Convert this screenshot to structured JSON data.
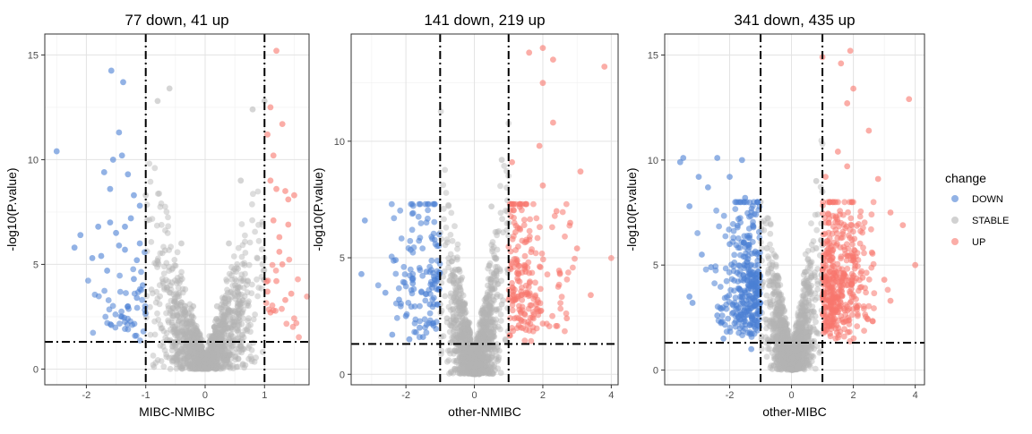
{
  "chart_data": [
    {
      "type": "scatter",
      "subtype": "volcano",
      "title": "77 down, 41 up",
      "xlabel": "MIBC-NMIBC",
      "ylabel": "-log10(P.value)",
      "xlim": [
        -2.7,
        1.75
      ],
      "ylim": [
        -0.75,
        16.0
      ],
      "xticks": [
        -2,
        -1,
        0,
        1
      ],
      "yticks": [
        0,
        5,
        10,
        15
      ],
      "fold_change_thresholds": [
        -1,
        1
      ],
      "pvalue_threshold": 1.301,
      "counts": {
        "DOWN": 77,
        "UP": 41
      },
      "points_DOWN": [
        [
          -2.5,
          10.4
        ],
        [
          -1.58,
          14.25
        ],
        [
          -1.38,
          13.7
        ],
        [
          -2.1,
          6.4
        ],
        [
          -1.8,
          6.8
        ],
        [
          -1.9,
          5.3
        ],
        [
          -1.7,
          9.4
        ],
        [
          -1.55,
          10.0
        ],
        [
          -1.6,
          8.6
        ],
        [
          -1.4,
          10.2
        ],
        [
          -1.5,
          6.5
        ],
        [
          -1.65,
          4.7
        ],
        [
          -1.45,
          5.9
        ],
        [
          -1.35,
          6.8
        ],
        [
          -1.25,
          7.2
        ],
        [
          -1.2,
          4.3
        ],
        [
          -1.3,
          3.0
        ],
        [
          -1.4,
          2.5
        ],
        [
          -1.15,
          5.2
        ],
        [
          -1.1,
          6.0
        ],
        [
          -1.05,
          4.0
        ],
        [
          -1.2,
          8.3
        ],
        [
          -1.3,
          9.3
        ],
        [
          -1.15,
          3.4
        ],
        [
          -1.35,
          5.7
        ],
        [
          -1.1,
          7.8
        ],
        [
          -2.2,
          5.8
        ],
        [
          -1.75,
          5.4
        ],
        [
          -1.6,
          7.0
        ],
        [
          -1.45,
          11.3
        ]
      ],
      "points_UP": [
        [
          1.2,
          15.2
        ],
        [
          1.1,
          12.5
        ],
        [
          1.05,
          11.2
        ],
        [
          1.15,
          10.2
        ],
        [
          1.2,
          8.6
        ],
        [
          1.35,
          8.5
        ],
        [
          1.4,
          8.1
        ],
        [
          1.25,
          6.3
        ],
        [
          1.3,
          5.0
        ],
        [
          1.45,
          3.6
        ],
        [
          1.35,
          3.3
        ],
        [
          1.1,
          9.0
        ],
        [
          1.15,
          7.1
        ],
        [
          1.2,
          4.2
        ],
        [
          1.05,
          3.7
        ],
        [
          1.3,
          11.7
        ],
        [
          1.25,
          5.6
        ],
        [
          1.4,
          6.9
        ],
        [
          1.1,
          2.7
        ],
        [
          1.5,
          8.3
        ]
      ],
      "stable_cloud": [
        [
          -1.0,
          8.3
        ],
        [
          -0.8,
          12.8
        ],
        [
          -0.6,
          13.4
        ],
        [
          -0.4,
          6.0
        ],
        [
          -0.2,
          3.0
        ],
        [
          0.0,
          0.2
        ],
        [
          0.2,
          3.0
        ],
        [
          0.4,
          6.0
        ],
        [
          0.6,
          9.0
        ],
        [
          0.8,
          12.4
        ],
        [
          1.0,
          12.8
        ]
      ]
    },
    {
      "type": "scatter",
      "subtype": "volcano",
      "title": "141 down, 219 up",
      "xlabel": "other-NMIBC",
      "ylabel": "-log10(P.value)",
      "xlim": [
        -3.6,
        4.2
      ],
      "ylim": [
        -0.45,
        14.6
      ],
      "xticks": [
        -2,
        0,
        2,
        4
      ],
      "yticks": [
        0,
        5,
        10
      ],
      "fold_change_thresholds": [
        -1,
        1
      ],
      "pvalue_threshold": 1.301,
      "counts": {
        "DOWN": 141,
        "UP": 219
      },
      "points_DOWN": [
        [
          -3.2,
          6.6
        ],
        [
          -3.3,
          4.3
        ],
        [
          -2.3,
          4.9
        ],
        [
          -2.6,
          3.5
        ],
        [
          -2.2,
          3.2
        ],
        [
          -2.0,
          2.5
        ],
        [
          -1.8,
          3.9
        ],
        [
          -1.6,
          2.0
        ],
        [
          -1.5,
          1.6
        ],
        [
          -1.3,
          3.0
        ],
        [
          -1.2,
          2.2
        ],
        [
          -1.1,
          4.0
        ],
        [
          -2.4,
          1.7
        ],
        [
          -1.9,
          1.5
        ],
        [
          -1.4,
          4.4
        ]
      ],
      "points_UP": [
        [
          2.0,
          14.0
        ],
        [
          3.8,
          13.2
        ],
        [
          1.6,
          13.8
        ],
        [
          2.3,
          13.5
        ],
        [
          2.0,
          12.5
        ],
        [
          2.3,
          10.8
        ],
        [
          1.9,
          9.8
        ],
        [
          2.4,
          7.0
        ],
        [
          2.8,
          6.5
        ],
        [
          3.0,
          5.4
        ],
        [
          2.5,
          4.3
        ],
        [
          3.4,
          3.4
        ],
        [
          1.2,
          6.1
        ],
        [
          1.5,
          4.4
        ],
        [
          1.8,
          3.0
        ],
        [
          1.1,
          9.1
        ],
        [
          2.0,
          8.1
        ],
        [
          2.7,
          2.4
        ],
        [
          1.3,
          2.1
        ],
        [
          3.1,
          8.7
        ]
      ],
      "stable_cloud": [
        [
          -1.0,
          3.0
        ],
        [
          -0.8,
          2.4
        ],
        [
          -0.4,
          1.5
        ],
        [
          0.0,
          0.1
        ],
        [
          0.4,
          1.5
        ],
        [
          0.8,
          3.0
        ],
        [
          1.0,
          6.5
        ],
        [
          0.8,
          9.2
        ],
        [
          0.5,
          7.2
        ]
      ]
    },
    {
      "type": "scatter",
      "subtype": "volcano",
      "title": "341 down, 435 up",
      "xlabel": "other-MIBC",
      "ylabel": "-log10(P.value)",
      "xlim": [
        -4.1,
        4.3
      ],
      "ylim": [
        -0.7,
        16.0
      ],
      "xticks": [
        -2,
        0,
        2,
        4
      ],
      "yticks": [
        0,
        5,
        10,
        15
      ],
      "fold_change_thresholds": [
        -1,
        1
      ],
      "pvalue_threshold": 1.301,
      "counts": {
        "DOWN": 341,
        "UP": 435
      },
      "points_DOWN": [
        [
          -3.6,
          9.9
        ],
        [
          -3.5,
          10.1
        ],
        [
          -3.0,
          9.2
        ],
        [
          -2.7,
          8.7
        ],
        [
          -2.4,
          10.1
        ],
        [
          -2.0,
          9.2
        ],
        [
          -1.6,
          10.0
        ],
        [
          -3.3,
          3.5
        ],
        [
          -3.2,
          3.2
        ],
        [
          -2.4,
          2.6
        ],
        [
          -2.2,
          1.5
        ],
        [
          -1.3,
          1.0
        ],
        [
          -3.3,
          7.8
        ],
        [
          -2.9,
          5.5
        ],
        [
          -2.6,
          4.9
        ],
        [
          -2.0,
          6.0
        ],
        [
          -1.5,
          8.2
        ]
      ],
      "points_UP": [
        [
          1.9,
          15.2
        ],
        [
          1.6,
          14.6
        ],
        [
          1.0,
          14.9
        ],
        [
          2.0,
          13.4
        ],
        [
          1.8,
          12.7
        ],
        [
          3.8,
          12.9
        ],
        [
          2.5,
          11.4
        ],
        [
          1.5,
          10.4
        ],
        [
          1.8,
          9.7
        ],
        [
          2.8,
          9.1
        ],
        [
          3.2,
          7.5
        ],
        [
          4.0,
          5.0
        ],
        [
          3.2,
          3.3
        ],
        [
          2.3,
          4.4
        ],
        [
          3.6,
          6.9
        ],
        [
          1.2,
          7.0
        ],
        [
          1.1,
          9.2
        ],
        [
          2.6,
          5.6
        ],
        [
          3.0,
          4.3
        ]
      ],
      "stable_cloud": [
        [
          -1.0,
          8.0
        ],
        [
          -0.8,
          5.8
        ],
        [
          -0.4,
          2.6
        ],
        [
          0.0,
          0.1
        ],
        [
          0.4,
          2.6
        ],
        [
          0.8,
          5.8
        ],
        [
          1.0,
          8.5
        ],
        [
          0.8,
          9.0
        ]
      ]
    }
  ],
  "legend": {
    "title": "change",
    "items": [
      {
        "label": "DOWN",
        "color": "#4a7fd4"
      },
      {
        "label": "STABLE",
        "color": "#b3b3b3"
      },
      {
        "label": "UP",
        "color": "#f8766d"
      }
    ]
  }
}
